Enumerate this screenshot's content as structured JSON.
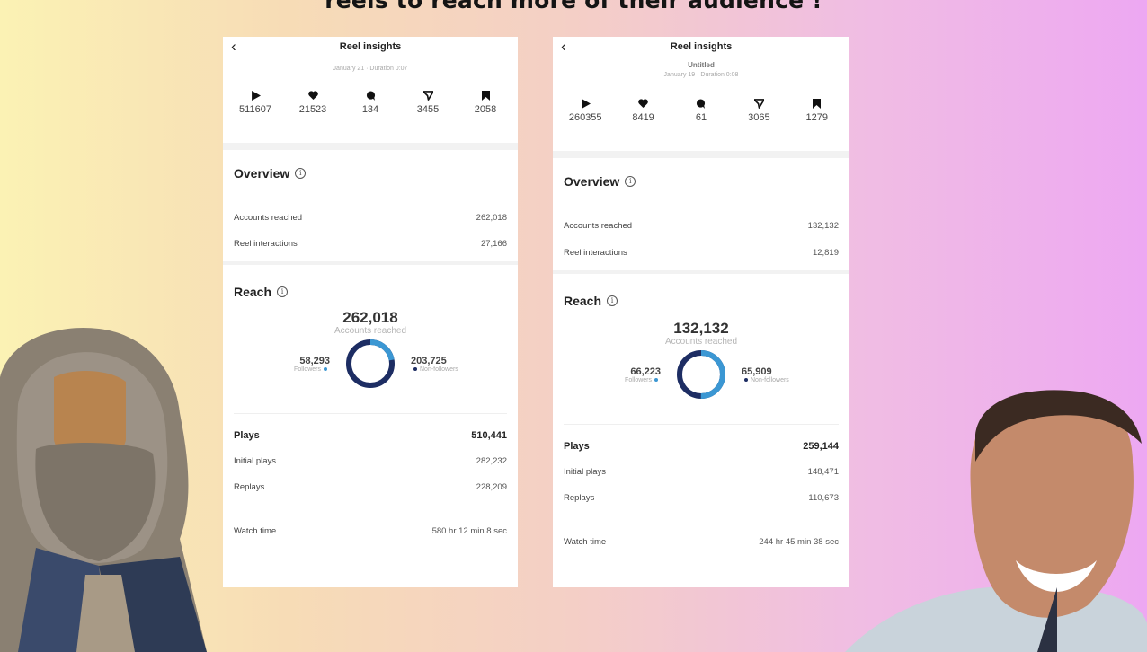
{
  "headline": "reels to reach more of their audience !",
  "colors": {
    "followers": "#3b97d3",
    "non_followers": "#1d2d63"
  },
  "panels": [
    {
      "title": "Reel insights",
      "reel_name": "",
      "meta": "January 21 · Duration 0:07",
      "stats": {
        "plays": "511607",
        "likes": "21523",
        "comments": "134",
        "shares": "3455",
        "saves": "2058"
      },
      "overview": {
        "title": "Overview",
        "accounts_reached_label": "Accounts reached",
        "accounts_reached": "262,018",
        "reel_interactions_label": "Reel interactions",
        "reel_interactions": "27,166"
      },
      "reach": {
        "title": "Reach",
        "total": "262,018",
        "caption": "Accounts reached",
        "followers": "58,293",
        "followers_label": "Followers",
        "non_followers": "203,725",
        "non_followers_label": "Non-followers",
        "followers_fraction": 0.222
      },
      "plays_section": {
        "plays_label": "Plays",
        "plays": "510,441",
        "initial_label": "Initial plays",
        "initial": "282,232",
        "replays_label": "Replays",
        "replays": "228,209",
        "watch_label": "Watch time",
        "watch": "580 hr 12 min 8 sec"
      }
    },
    {
      "title": "Reel insights",
      "reel_name": "Untitled",
      "meta": "January 19 · Duration 0:08",
      "stats": {
        "plays": "260355",
        "likes": "8419",
        "comments": "61",
        "shares": "3065",
        "saves": "1279"
      },
      "overview": {
        "title": "Overview",
        "accounts_reached_label": "Accounts reached",
        "accounts_reached": "132,132",
        "reel_interactions_label": "Reel interactions",
        "reel_interactions": "12,819"
      },
      "reach": {
        "title": "Reach",
        "total": "132,132",
        "caption": "Accounts reached",
        "followers": "66,223",
        "followers_label": "Followers",
        "non_followers": "65,909",
        "non_followers_label": "Non-followers",
        "followers_fraction": 0.501
      },
      "plays_section": {
        "plays_label": "Plays",
        "plays": "259,144",
        "initial_label": "Initial plays",
        "initial": "148,471",
        "replays_label": "Replays",
        "replays": "110,673",
        "watch_label": "Watch time",
        "watch": "244 hr 45 min 38 sec"
      }
    }
  ]
}
